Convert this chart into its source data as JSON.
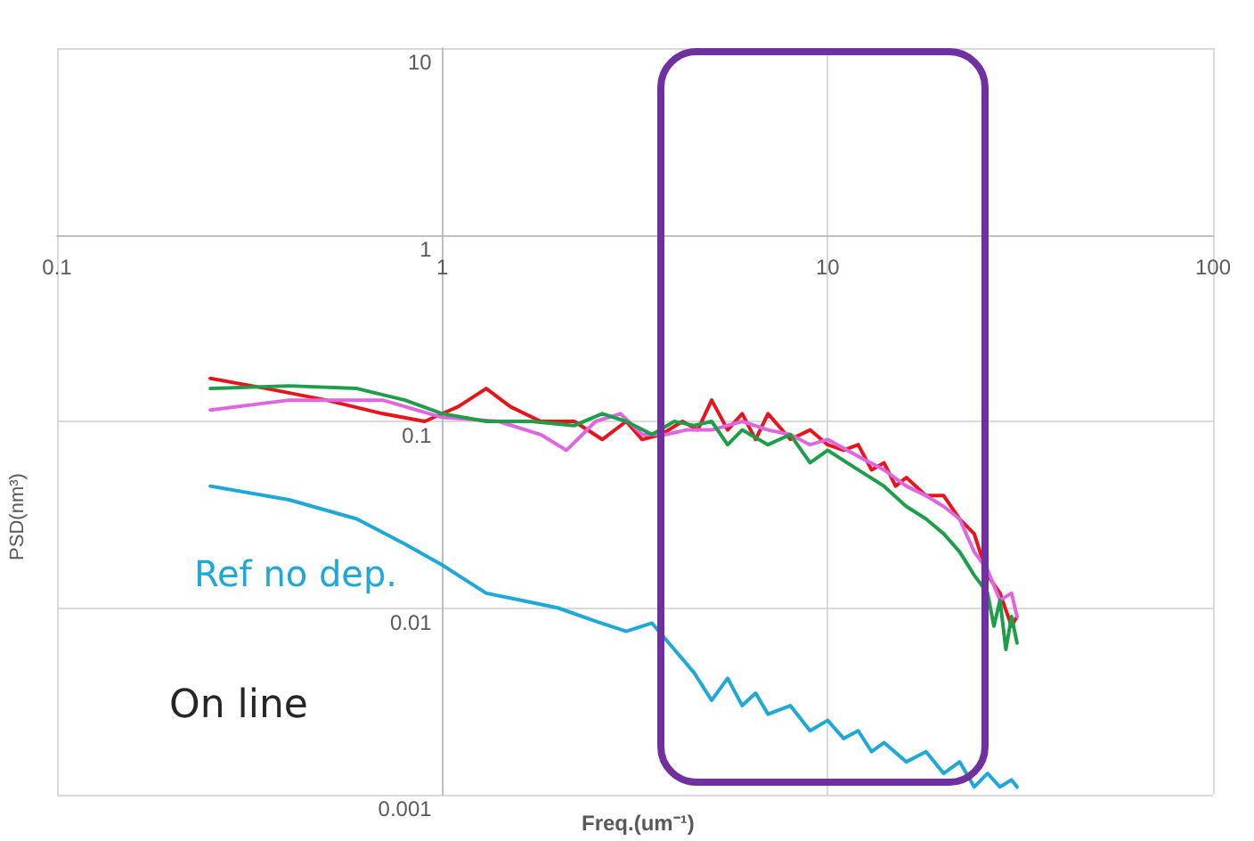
{
  "chart_data": {
    "type": "line",
    "xlabel": "Freq.(um⁻¹)",
    "ylabel": "PSD(nm³)",
    "log": "xy",
    "grid": true,
    "legend": false,
    "marker": "none",
    "line_style": "solid",
    "xlim": [
      0.1,
      100
    ],
    "xticks": [
      0.1,
      1,
      10,
      100
    ],
    "ylim": [
      0.001,
      10
    ],
    "yticks": [
      0.001,
      0.01,
      0.1,
      1,
      10
    ],
    "annotations": [
      "On line"
    ],
    "series": [
      {
        "color": "#e8141c",
        "x": [
          0.25,
          0.35,
          0.5,
          0.7,
          0.9,
          1.1,
          1.3,
          1.5,
          1.8,
          2.2,
          2.6,
          3,
          3.3,
          3.7,
          4.2,
          4.6,
          5,
          5.5,
          6,
          6.5,
          7,
          8,
          9,
          10,
          11,
          12,
          13,
          14,
          15,
          16,
          18,
          20,
          22,
          24,
          26,
          28,
          30,
          31
        ],
        "values": [
          0.17,
          0.15,
          0.13,
          0.11,
          0.1,
          0.12,
          0.15,
          0.12,
          0.1,
          0.1,
          0.08,
          0.1,
          0.08,
          0.085,
          0.1,
          0.09,
          0.13,
          0.09,
          0.11,
          0.08,
          0.11,
          0.08,
          0.09,
          0.075,
          0.07,
          0.075,
          0.055,
          0.06,
          0.045,
          0.05,
          0.04,
          0.04,
          0.03,
          0.025,
          0.015,
          0.012,
          0.008,
          0.009
        ]
      },
      {
        "color": "#e066e0",
        "x": [
          0.25,
          0.4,
          0.7,
          1,
          1.4,
          1.8,
          2.1,
          2.5,
          2.9,
          3.3,
          3.8,
          4.3,
          5,
          6,
          7,
          8,
          9,
          10,
          12,
          14,
          16,
          18,
          20,
          22,
          24,
          26,
          28,
          30,
          31
        ],
        "values": [
          0.115,
          0.13,
          0.13,
          0.105,
          0.1,
          0.085,
          0.07,
          0.1,
          0.11,
          0.085,
          0.085,
          0.09,
          0.09,
          0.1,
          0.09,
          0.085,
          0.075,
          0.08,
          0.065,
          0.055,
          0.045,
          0.04,
          0.035,
          0.03,
          0.02,
          0.016,
          0.011,
          0.012,
          0.009
        ]
      },
      {
        "color": "#1e9e48",
        "x": [
          0.25,
          0.4,
          0.6,
          0.8,
          1,
          1.3,
          1.7,
          2.2,
          2.6,
          3,
          3.5,
          4,
          4.5,
          5,
          5.5,
          6,
          7,
          8,
          9,
          10,
          12,
          14,
          16,
          18,
          20,
          22,
          24,
          26,
          27,
          28,
          29,
          30,
          31
        ],
        "values": [
          0.15,
          0.155,
          0.15,
          0.13,
          0.11,
          0.1,
          0.1,
          0.095,
          0.11,
          0.1,
          0.085,
          0.1,
          0.095,
          0.1,
          0.075,
          0.09,
          0.075,
          0.085,
          0.06,
          0.07,
          0.055,
          0.045,
          0.035,
          0.03,
          0.025,
          0.02,
          0.015,
          0.012,
          0.008,
          0.011,
          0.006,
          0.009,
          0.0065
        ]
      },
      {
        "name": "Ref no dep.",
        "color": "#1ea8d8",
        "x": [
          0.25,
          0.4,
          0.6,
          0.8,
          1,
          1.3,
          1.6,
          2,
          2.5,
          3,
          3.5,
          4,
          4.5,
          5,
          5.5,
          6,
          6.5,
          7,
          8,
          9,
          10,
          11,
          12,
          13,
          14,
          16,
          18,
          20,
          22,
          24,
          26,
          28,
          30,
          31
        ],
        "values": [
          0.045,
          0.038,
          0.03,
          0.022,
          0.017,
          0.012,
          0.011,
          0.01,
          0.0085,
          0.0075,
          0.0083,
          0.006,
          0.0045,
          0.0032,
          0.0042,
          0.003,
          0.0035,
          0.0027,
          0.003,
          0.0022,
          0.0025,
          0.002,
          0.0022,
          0.0017,
          0.0019,
          0.0015,
          0.0017,
          0.0013,
          0.0015,
          0.0011,
          0.0013,
          0.0011,
          0.0012,
          0.0011
        ]
      }
    ]
  }
}
